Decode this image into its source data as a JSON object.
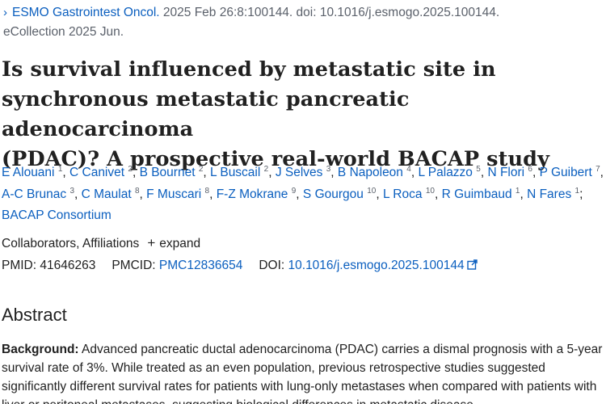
{
  "citation": {
    "journal": "ESMO Gastrointest Oncol.",
    "details": " 2025 Feb 26:8:100144. doi: 10.1016/j.esmogo.2025.100144.",
    "ecollection": "eCollection 2025 Jun."
  },
  "article": {
    "title_line1": "Is survival influenced by metastatic site in",
    "title_line2": "synchronous metastatic pancreatic adenocarcinoma",
    "title_line3": "(PDAC)? A prospective real-world BACAP study"
  },
  "authors": [
    {
      "name": "E Alouani",
      "aff": "1"
    },
    {
      "name": "C Canivet",
      "aff": "2"
    },
    {
      "name": "B Bournet",
      "aff": "2"
    },
    {
      "name": "L Buscail",
      "aff": "2"
    },
    {
      "name": "J Selves",
      "aff": "3"
    },
    {
      "name": "B Napoleon",
      "aff": "4"
    },
    {
      "name": "L Palazzo",
      "aff": "5"
    },
    {
      "name": "N Flori",
      "aff": "6"
    },
    {
      "name": "P Guibert",
      "aff": "7"
    },
    {
      "name": "A-C Brunac",
      "aff": "3"
    },
    {
      "name": "C Maulat",
      "aff": "8"
    },
    {
      "name": "F Muscari",
      "aff": "8"
    },
    {
      "name": "F-Z Mokrane",
      "aff": "9"
    },
    {
      "name": "S Gourgou",
      "aff": "10"
    },
    {
      "name": "L Roca",
      "aff": "10"
    },
    {
      "name": "R Guimbaud",
      "aff": "1"
    },
    {
      "name": "N Fares",
      "aff": "1"
    }
  ],
  "consortium": "BACAP Consortium",
  "collaborators": {
    "label": "Collaborators, Affiliations",
    "expand_icon": "+",
    "expand_label": "expand"
  },
  "ids": {
    "pmid_label": "PMID:",
    "pmid": "41646263",
    "pmcid_label": "PMCID:",
    "pmcid": "PMC12836654",
    "doi_label": "DOI:",
    "doi": "10.1016/j.esmogo.2025.100144"
  },
  "abstract": {
    "heading": "Abstract",
    "background_label": "Background:",
    "background_text": " Advanced pancreatic ductal adenocarcinoma (PDAC) carries a dismal prognosis with a 5-year survival rate of 3%. While treated as an even population, previous retrospective studies suggested significantly different survival rates for patients with lung-only metastases when compared with patients with liver or peritoneal metastases, suggesting biological differences in metastatic disease."
  },
  "colors": {
    "link": "#0b5fbf",
    "text": "#212121",
    "muted": "#5b616b"
  }
}
